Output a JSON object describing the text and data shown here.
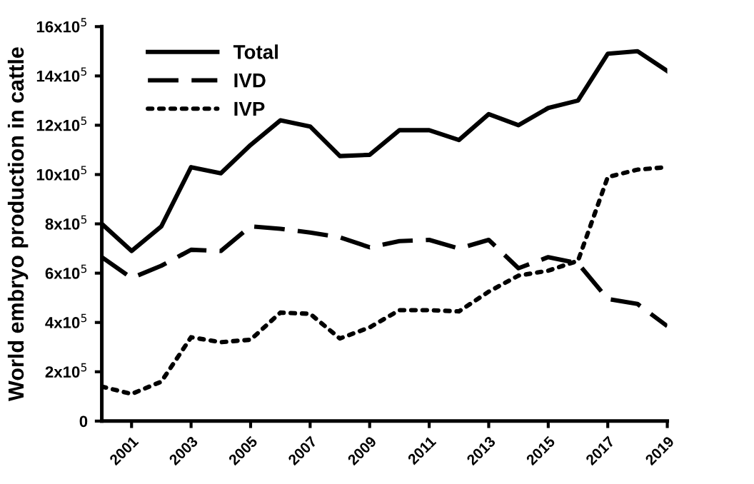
{
  "chart_data": {
    "type": "line",
    "ylabel": "World embryo production in cattle",
    "x": [
      2000,
      2001,
      2002,
      2003,
      2004,
      2005,
      2006,
      2007,
      2008,
      2009,
      2010,
      2011,
      2012,
      2013,
      2014,
      2015,
      2016,
      2017,
      2018,
      2019
    ],
    "series": [
      {
        "name": "Total",
        "color": "#000000",
        "line_style": "solid",
        "values": [
          800000,
          690000,
          790000,
          1030000,
          1005000,
          1120000,
          1220000,
          1195000,
          1075000,
          1080000,
          1180000,
          1180000,
          1140000,
          1245000,
          1200000,
          1270000,
          1300000,
          1490000,
          1500000,
          1420000
        ]
      },
      {
        "name": "IVD",
        "color": "#000000",
        "line_style": "dashed",
        "values": [
          665000,
          580000,
          630000,
          695000,
          690000,
          790000,
          780000,
          765000,
          745000,
          705000,
          730000,
          735000,
          700000,
          735000,
          620000,
          665000,
          640000,
          495000,
          475000,
          385000
        ]
      },
      {
        "name": "IVP",
        "color": "#000000",
        "line_style": "dotted",
        "values": [
          140000,
          110000,
          160000,
          340000,
          320000,
          330000,
          440000,
          435000,
          335000,
          380000,
          450000,
          450000,
          445000,
          525000,
          590000,
          610000,
          650000,
          990000,
          1020000,
          1030000
        ]
      }
    ],
    "xlim": [
      2000,
      2019
    ],
    "xticks": [
      2001,
      2003,
      2005,
      2007,
      2009,
      2011,
      2013,
      2015,
      2017,
      {
        "value": 2019,
        "label": "2019"
      }
    ],
    "ylim": [
      0,
      1600000
    ],
    "yticks": [
      0,
      {
        "value": 200000,
        "label": "2x10$^{5}$"
      },
      {
        "value": 400000,
        "label": "4x10$^{5}$"
      },
      {
        "value": 600000,
        "label": "6x10$^{5}$"
      },
      {
        "value": 800000,
        "label": "8x10$^{5}$"
      },
      {
        "value": 1000000,
        "label": "10x10$^{5}$"
      },
      {
        "value": 1200000,
        "label": "12x10$^{5}$"
      },
      {
        "value": 1400000,
        "label": "14x10$^{5}$"
      },
      {
        "value": 1600000,
        "label": "16x10$^{5}$"
      }
    ],
    "grid": false,
    "legend": "top left",
    "marker": "none"
  }
}
